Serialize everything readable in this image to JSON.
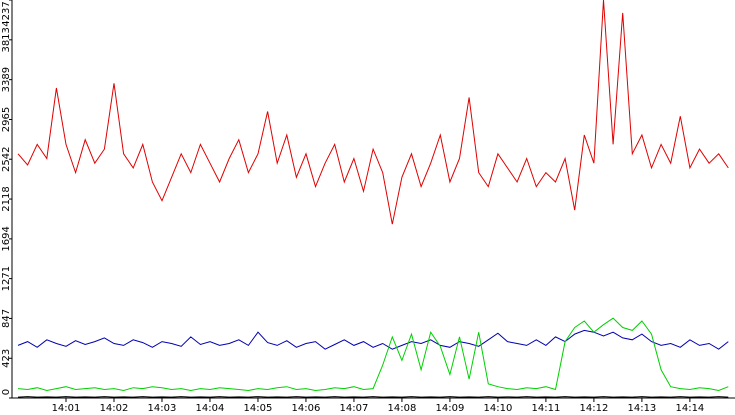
{
  "chart_data": {
    "type": "line",
    "x": [
      0,
      0.2,
      0.4,
      0.6,
      0.8,
      1,
      1.2,
      1.4,
      1.6,
      1.8,
      2,
      2.2,
      2.4,
      2.6,
      2.8,
      3,
      3.2,
      3.4,
      3.6,
      3.8,
      4,
      4.2,
      4.4,
      4.6,
      4.8,
      5,
      5.2,
      5.4,
      5.6,
      5.8,
      6,
      6.2,
      6.4,
      6.6,
      6.8,
      7,
      7.2,
      7.4,
      7.6,
      7.8,
      8,
      8.2,
      8.4,
      8.6,
      8.8,
      9,
      9.2,
      9.4,
      9.6,
      9.8,
      10,
      10.2,
      10.4,
      10.6,
      10.8,
      11,
      11.2,
      11.4,
      11.6,
      11.8,
      12,
      12.2,
      12.4,
      12.6,
      12.8,
      13,
      13.2,
      13.4,
      13.6,
      13.8,
      14,
      14.2,
      14.4,
      14.6,
      14.8
    ],
    "series": [
      {
        "color": "#e00000",
        "values": [
          2600,
          2480,
          2700,
          2550,
          3300,
          2700,
          2400,
          2750,
          2500,
          2650,
          3350,
          2600,
          2450,
          2700,
          2300,
          2100,
          2350,
          2600,
          2400,
          2700,
          2500,
          2300,
          2550,
          2750,
          2400,
          2600,
          3050,
          2500,
          2800,
          2350,
          2600,
          2250,
          2500,
          2700,
          2300,
          2550,
          2200,
          2650,
          2400,
          1850,
          2350,
          2600,
          2250,
          2500,
          2800,
          2300,
          2550,
          3200,
          2400,
          2250,
          2600,
          2450,
          2300,
          2550,
          2250,
          2400,
          2300,
          2550,
          2000,
          2800,
          2500,
          4237,
          2700,
          4100,
          2600,
          2800,
          2450,
          2700,
          2500,
          3000,
          2450,
          2650,
          2500,
          2600,
          2450
        ]
      },
      {
        "color": "#0000b0",
        "values": [
          560,
          600,
          540,
          620,
          580,
          550,
          610,
          570,
          600,
          640,
          580,
          560,
          620,
          590,
          540,
          600,
          580,
          550,
          650,
          570,
          600,
          560,
          580,
          620,
          560,
          700,
          590,
          560,
          610,
          540,
          580,
          600,
          520,
          570,
          620,
          560,
          600,
          540,
          580,
          520,
          560,
          600,
          580,
          620,
          560,
          540,
          600,
          580,
          550,
          620,
          690,
          600,
          580,
          560,
          620,
          560,
          650,
          600,
          680,
          720,
          700,
          660,
          700,
          640,
          620,
          680,
          600,
          560,
          580,
          540,
          620,
          560,
          580,
          520,
          600
        ]
      },
      {
        "color": "#00d000",
        "values": [
          100,
          90,
          110,
          80,
          100,
          120,
          90,
          100,
          110,
          90,
          100,
          80,
          110,
          100,
          120,
          110,
          90,
          100,
          80,
          100,
          90,
          110,
          100,
          90,
          80,
          100,
          90,
          110,
          120,
          90,
          100,
          80,
          90,
          110,
          100,
          120,
          90,
          100,
          350,
          650,
          400,
          680,
          300,
          700,
          550,
          250,
          650,
          200,
          700,
          150,
          120,
          100,
          90,
          110,
          100,
          120,
          90,
          600,
          750,
          820,
          700,
          780,
          850,
          750,
          720,
          820,
          680,
          300,
          120,
          100,
          90,
          110,
          100,
          80,
          120
        ]
      },
      {
        "color": "#000000",
        "values": [
          10,
          15,
          10,
          12,
          10,
          15,
          10,
          12,
          10,
          15,
          10,
          12,
          10,
          15,
          10,
          12,
          10,
          15,
          10,
          12,
          10,
          15,
          10,
          12,
          10,
          15,
          10,
          12,
          10,
          15,
          10,
          12,
          10,
          15,
          10,
          12,
          10,
          15,
          10,
          12,
          10,
          15,
          10,
          12,
          10,
          15,
          10,
          12,
          10,
          15,
          10,
          12,
          10,
          15,
          10,
          12,
          10,
          15,
          10,
          12,
          10,
          15,
          10,
          12,
          10,
          15,
          10,
          12,
          10,
          15,
          10,
          12,
          10,
          15,
          10
        ]
      }
    ],
    "xlim": [
      -0.125,
      14.94
    ],
    "xticks": [
      {
        "value": 1,
        "label": "14:01"
      },
      {
        "value": 2,
        "label": "14:02"
      },
      {
        "value": 3,
        "label": "14:03"
      },
      {
        "value": 4,
        "label": "14:04"
      },
      {
        "value": 5,
        "label": "14:05"
      },
      {
        "value": 6,
        "label": "14:06"
      },
      {
        "value": 7,
        "label": "14:07"
      },
      {
        "value": 8,
        "label": "14:08"
      },
      {
        "value": 9,
        "label": "14:09"
      },
      {
        "value": 10,
        "label": "14:10"
      },
      {
        "value": 11,
        "label": "14:11"
      },
      {
        "value": 12,
        "label": "14:12"
      },
      {
        "value": 13,
        "label": "14:13"
      },
      {
        "value": 14,
        "label": "14:14"
      }
    ],
    "ylim": [
      0,
      4237
    ],
    "yticks": [
      0,
      423,
      847,
      1271,
      1694,
      2118,
      2542,
      2965,
      3389,
      3813,
      4237
    ],
    "grid": false
  }
}
